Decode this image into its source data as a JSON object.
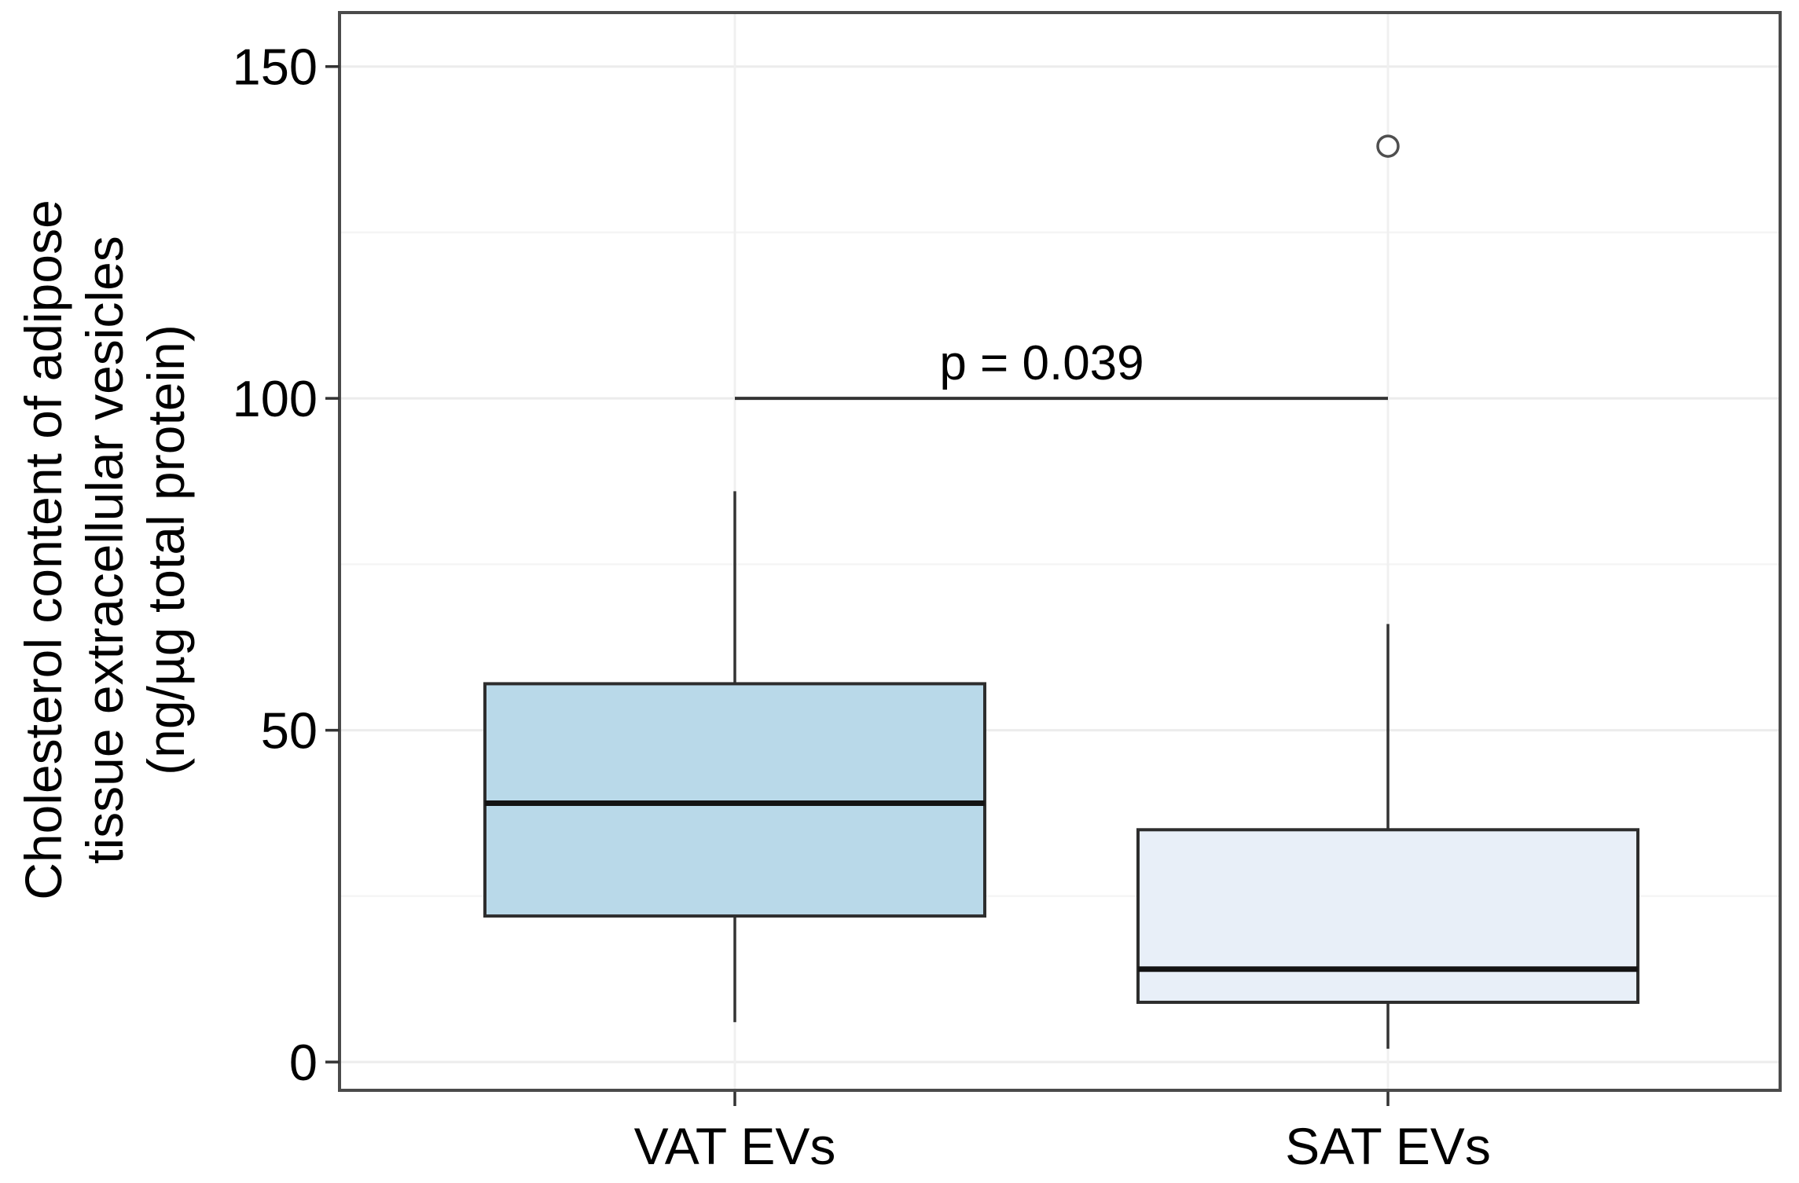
{
  "figure": {
    "y_axis": {
      "title_lines": [
        "Cholesterol content of adipose",
        "tissue extracellular vesicles",
        "(ng/µg total protein)"
      ],
      "tick_labels": [
        "0",
        "50",
        "100",
        "150"
      ]
    },
    "x_axis": {
      "categories": [
        "VAT EVs",
        "SAT EVs"
      ]
    },
    "annotation": {
      "text": "p = 0.039"
    }
  },
  "chart_data": {
    "type": "boxplot",
    "title": "",
    "ylabel": "Cholesterol content of adipose tissue extracellular vesicles (ng/µg total protein)",
    "xlabel": "",
    "categories": [
      "VAT EVs",
      "SAT EVs"
    ],
    "series": [
      {
        "name": "VAT EVs",
        "min": 6,
        "q1": 22,
        "median": 39,
        "q3": 57,
        "max": 86,
        "outliers": [],
        "fill": "#b9d9e9"
      },
      {
        "name": "SAT EVs",
        "min": 2,
        "q1": 9,
        "median": 14,
        "q3": 35,
        "max": 66,
        "outliers": [
          138
        ],
        "fill": "#e8eff8"
      }
    ],
    "yticks": [
      0,
      50,
      100,
      150
    ],
    "minor_yticks": [
      25,
      75,
      125
    ],
    "ylim": [
      -4,
      158
    ],
    "grid": "horizontal major and minor gridlines, light gray; faint vertical gridline at each category",
    "legend_position": "none",
    "annotation": {
      "text": "p = 0.039",
      "y": 100,
      "between": [
        "VAT EVs",
        "SAT EVs"
      ]
    }
  },
  "colors": {
    "background": "#ffffff",
    "panel_border": "#4b4b4b",
    "major_grid": "#ececec",
    "minor_grid": "#f5f5f5",
    "vertical_grid": "#f0f0f0",
    "box_border": "#2d2d2d",
    "median_line": "#141414",
    "whisker": "#333333",
    "outlier_stroke": "#4f4f4f",
    "text": "#000000",
    "vat_fill": "#b9d9e9",
    "sat_fill": "#e8eff8"
  }
}
